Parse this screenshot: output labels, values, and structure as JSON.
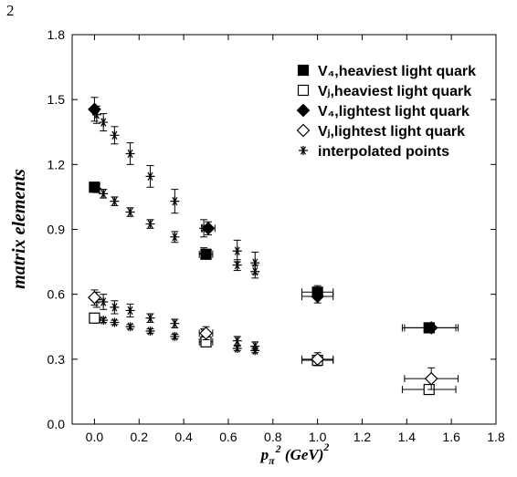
{
  "page_label": "2",
  "chart_data": {
    "type": "scatter",
    "xlabel": {
      "base": "p",
      "sub": "π",
      "sup1": "2",
      "unit": "(GeV)",
      "sup2": "2"
    },
    "ylabel": "matrix elements",
    "xlim": [
      -0.1,
      1.8
    ],
    "ylim": [
      0.0,
      1.8
    ],
    "xticks": [
      0.0,
      0.2,
      0.4,
      0.6,
      0.8,
      1.0,
      1.2,
      1.4,
      1.6,
      1.8
    ],
    "yticks": [
      0.0,
      0.3,
      0.6,
      0.9,
      1.2,
      1.5,
      1.8
    ],
    "xtick_labels": [
      "0.0",
      "0.2",
      "0.4",
      "0.6",
      "0.8",
      "1.0",
      "1.2",
      "1.4",
      "1.6",
      "1.8"
    ],
    "ytick_labels": [
      "0.0",
      "0.3",
      "0.6",
      "0.9",
      "1.2",
      "1.5",
      "1.8"
    ],
    "grid": false,
    "legend_placement": "top-right",
    "series": [
      {
        "name": "V₄,heaviest light quark",
        "marker": "filled-square",
        "points": [
          {
            "x": 0.0,
            "y": 1.095,
            "yerr": 0.015
          },
          {
            "x": 0.5,
            "y": 0.785,
            "yerr": 0.02,
            "xerr": 0.03
          },
          {
            "x": 1.0,
            "y": 0.61,
            "yerr": 0.03,
            "xerr": 0.07
          },
          {
            "x": 1.5,
            "y": 0.445,
            "yerr": 0.02,
            "xerr": 0.12
          }
        ]
      },
      {
        "name": "Vⱼ,heaviest light quark",
        "marker": "open-square",
        "points": [
          {
            "x": 0.0,
            "y": 0.49,
            "yerr": 0.01
          },
          {
            "x": 0.5,
            "y": 0.38,
            "yerr": 0.02,
            "xerr": 0.03
          },
          {
            "x": 1.0,
            "y": 0.295,
            "yerr": 0.02,
            "xerr": 0.07
          },
          {
            "x": 1.5,
            "y": 0.16,
            "yerr": 0.015,
            "xerr": 0.12
          }
        ]
      },
      {
        "name": "V₄,lightest light quark",
        "marker": "filled-diamond",
        "points": [
          {
            "x": 0.0,
            "y": 1.455,
            "yerr": 0.055
          },
          {
            "x": 0.51,
            "y": 0.905,
            "yerr": 0.03,
            "xerr": 0.03
          },
          {
            "x": 1.0,
            "y": 0.59,
            "yerr": 0.03,
            "xerr": 0.07
          },
          {
            "x": 1.51,
            "y": 0.445,
            "yerr": 0.02,
            "xerr": 0.12
          }
        ]
      },
      {
        "name": "Vⱼ,lightest light quark",
        "marker": "open-diamond",
        "points": [
          {
            "x": 0.0,
            "y": 0.585,
            "yerr": 0.035
          },
          {
            "x": 0.5,
            "y": 0.42,
            "yerr": 0.03,
            "xerr": 0.03
          },
          {
            "x": 1.0,
            "y": 0.3,
            "yerr": 0.03,
            "xerr": 0.07
          },
          {
            "x": 1.51,
            "y": 0.21,
            "yerr": 0.05,
            "xerr": 0.12
          }
        ]
      },
      {
        "name": "interpolated points",
        "marker": "asterisk",
        "points": [
          {
            "x": 0.01,
            "y": 1.43,
            "yerr": 0.04
          },
          {
            "x": 0.04,
            "y": 1.395,
            "yerr": 0.04
          },
          {
            "x": 0.09,
            "y": 1.335,
            "yerr": 0.04
          },
          {
            "x": 0.16,
            "y": 1.25,
            "yerr": 0.05
          },
          {
            "x": 0.25,
            "y": 1.145,
            "yerr": 0.05
          },
          {
            "x": 0.36,
            "y": 1.03,
            "yerr": 0.055
          },
          {
            "x": 0.49,
            "y": 0.905,
            "yerr": 0.04
          },
          {
            "x": 0.64,
            "y": 0.8,
            "yerr": 0.05
          },
          {
            "x": 0.72,
            "y": 0.745,
            "yerr": 0.05
          },
          {
            "x": 0.01,
            "y": 1.09,
            "yerr": 0.02
          },
          {
            "x": 0.04,
            "y": 1.065,
            "yerr": 0.02
          },
          {
            "x": 0.09,
            "y": 1.03,
            "yerr": 0.02
          },
          {
            "x": 0.16,
            "y": 0.98,
            "yerr": 0.02
          },
          {
            "x": 0.25,
            "y": 0.925,
            "yerr": 0.02
          },
          {
            "x": 0.36,
            "y": 0.865,
            "yerr": 0.025
          },
          {
            "x": 0.49,
            "y": 0.79,
            "yerr": 0.025
          },
          {
            "x": 0.64,
            "y": 0.735,
            "yerr": 0.025
          },
          {
            "x": 0.72,
            "y": 0.705,
            "yerr": 0.03
          },
          {
            "x": 0.01,
            "y": 0.575,
            "yerr": 0.035
          },
          {
            "x": 0.04,
            "y": 0.565,
            "yerr": 0.035
          },
          {
            "x": 0.09,
            "y": 0.54,
            "yerr": 0.03
          },
          {
            "x": 0.16,
            "y": 0.525,
            "yerr": 0.03
          },
          {
            "x": 0.25,
            "y": 0.49,
            "yerr": 0.02
          },
          {
            "x": 0.36,
            "y": 0.465,
            "yerr": 0.02
          },
          {
            "x": 0.49,
            "y": 0.42,
            "yerr": 0.02
          },
          {
            "x": 0.64,
            "y": 0.385,
            "yerr": 0.02
          },
          {
            "x": 0.72,
            "y": 0.36,
            "yerr": 0.02
          },
          {
            "x": 0.01,
            "y": 0.485,
            "yerr": 0.01
          },
          {
            "x": 0.04,
            "y": 0.48,
            "yerr": 0.01
          },
          {
            "x": 0.09,
            "y": 0.47,
            "yerr": 0.01
          },
          {
            "x": 0.16,
            "y": 0.45,
            "yerr": 0.01
          },
          {
            "x": 0.25,
            "y": 0.43,
            "yerr": 0.01
          },
          {
            "x": 0.36,
            "y": 0.405,
            "yerr": 0.01
          },
          {
            "x": 0.49,
            "y": 0.38,
            "yerr": 0.01
          },
          {
            "x": 0.64,
            "y": 0.35,
            "yerr": 0.01
          },
          {
            "x": 0.72,
            "y": 0.34,
            "yerr": 0.01
          }
        ]
      }
    ]
  }
}
